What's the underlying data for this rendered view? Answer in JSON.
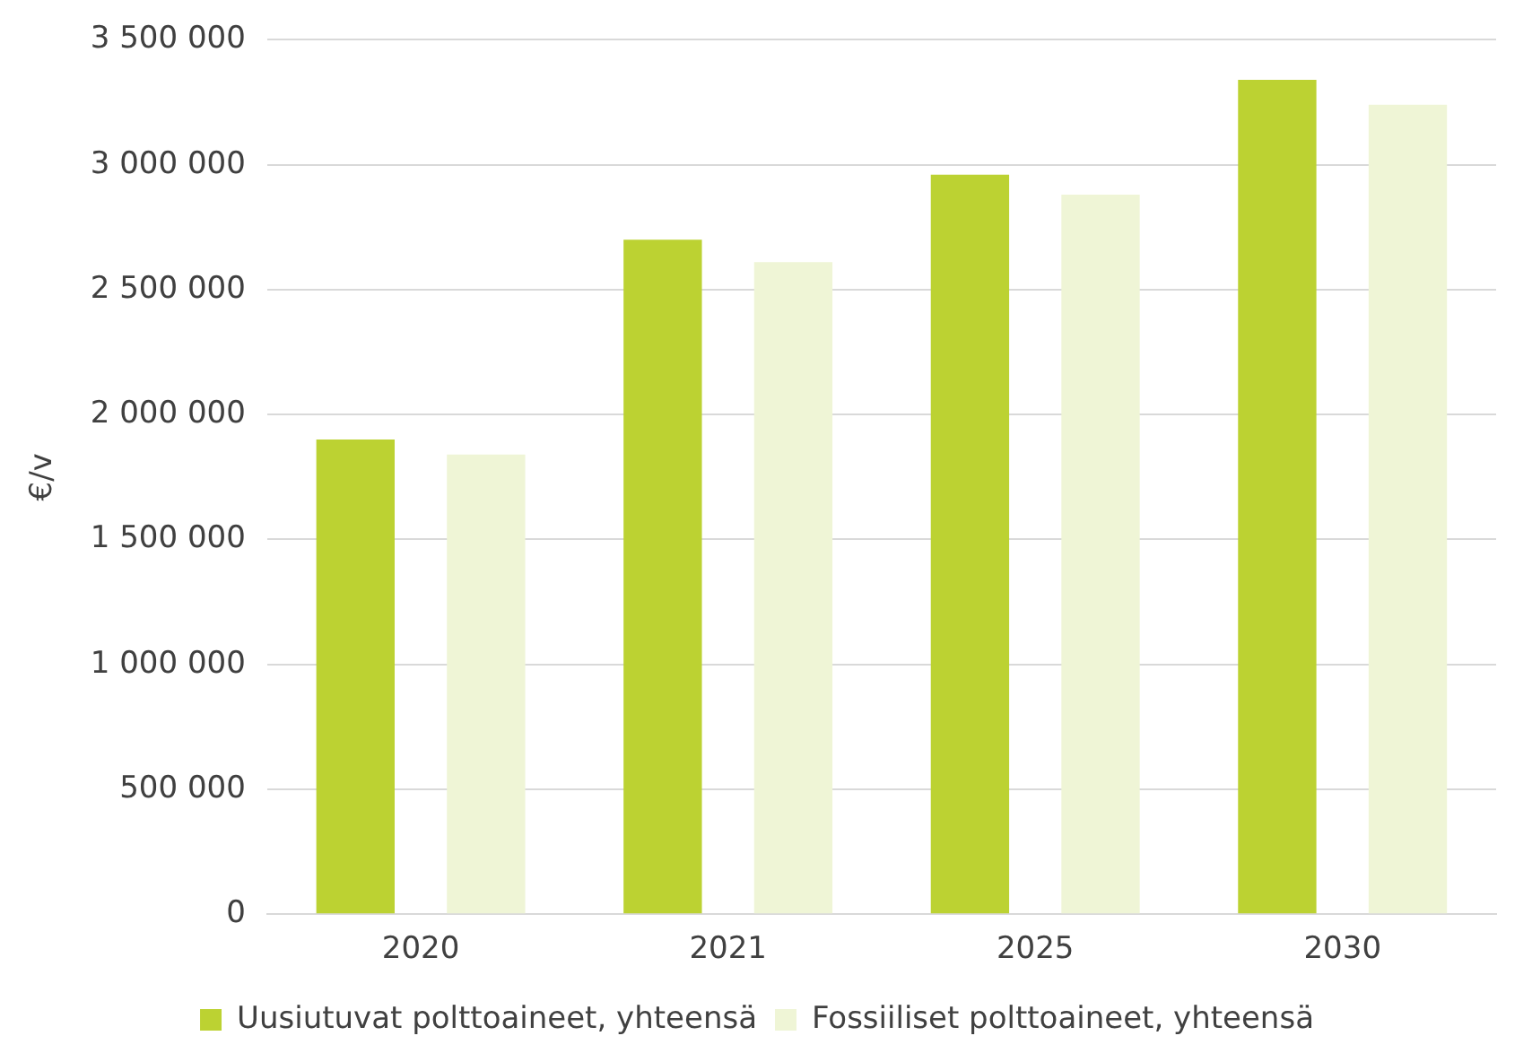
{
  "chart_data": {
    "type": "bar",
    "ylabel": "€/v",
    "categories": [
      "2020",
      "2021",
      "2025",
      "2030"
    ],
    "series": [
      {
        "name": "Uusiutuvat polttoaineet, yhteensä",
        "color": "#bcd232",
        "values": [
          1900000,
          2700000,
          2960000,
          3340000
        ]
      },
      {
        "name": "Fossiiliset polttoaineet, yhteensä",
        "color": "#eff5d6",
        "values": [
          1840000,
          2610000,
          2880000,
          3240000
        ]
      }
    ],
    "ylim": [
      0,
      3500000
    ],
    "yticks": [
      {
        "value": 0,
        "label": "0"
      },
      {
        "value": 500000,
        "label": "500 000"
      },
      {
        "value": 1000000,
        "label": "1 000 000"
      },
      {
        "value": 1500000,
        "label": "1 500 000"
      },
      {
        "value": 2000000,
        "label": "2 000 000"
      },
      {
        "value": 2500000,
        "label": "2 500 000"
      },
      {
        "value": 3000000,
        "label": "3 000 000"
      },
      {
        "value": 3500000,
        "label": "3 500 000"
      }
    ],
    "grid": "y",
    "legend": "bottom"
  }
}
